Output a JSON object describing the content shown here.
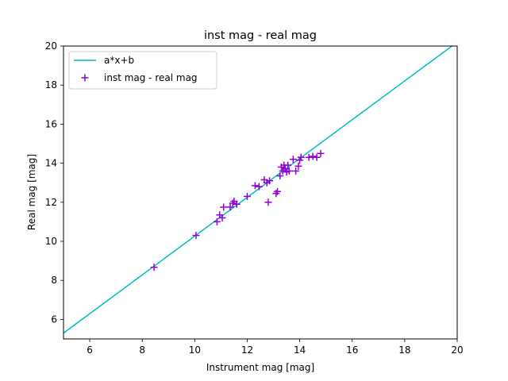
{
  "chart_data": {
    "type": "scatter",
    "title": "inst mag - real mag",
    "xlabel": "Instrument mag [mag]",
    "ylabel": "Real mag [mag]",
    "xlim": [
      5,
      20
    ],
    "ylim": [
      5,
      20
    ],
    "xticks": [
      6,
      8,
      10,
      12,
      14,
      16,
      18,
      20
    ],
    "yticks": [
      6,
      8,
      10,
      12,
      14,
      16,
      18,
      20
    ],
    "grid": false,
    "legend_position": "top-left",
    "fit_line": {
      "name": "a*x+b",
      "color": "#00bfbf",
      "points": [
        [
          5.0,
          5.3
        ],
        [
          19.8,
          20.0
        ]
      ]
    },
    "series": [
      {
        "name": "inst mag - real mag",
        "marker": "plus",
        "color": "#9400d3",
        "points": [
          [
            8.45,
            8.67
          ],
          [
            10.05,
            10.3
          ],
          [
            10.85,
            11.0
          ],
          [
            10.95,
            11.35
          ],
          [
            11.05,
            11.2
          ],
          [
            11.1,
            11.75
          ],
          [
            11.35,
            11.75
          ],
          [
            11.45,
            11.95
          ],
          [
            11.5,
            12.05
          ],
          [
            11.6,
            11.9
          ],
          [
            12.0,
            12.3
          ],
          [
            12.3,
            12.85
          ],
          [
            12.45,
            12.8
          ],
          [
            12.65,
            13.15
          ],
          [
            12.75,
            13.0
          ],
          [
            12.8,
            12.0
          ],
          [
            12.85,
            13.1
          ],
          [
            13.1,
            12.45
          ],
          [
            13.15,
            12.55
          ],
          [
            13.25,
            13.35
          ],
          [
            13.3,
            13.8
          ],
          [
            13.35,
            13.6
          ],
          [
            13.4,
            13.9
          ],
          [
            13.45,
            13.7
          ],
          [
            13.5,
            13.55
          ],
          [
            13.55,
            13.9
          ],
          [
            13.6,
            13.6
          ],
          [
            13.75,
            14.2
          ],
          [
            13.85,
            13.6
          ],
          [
            13.95,
            13.85
          ],
          [
            14.0,
            14.15
          ],
          [
            14.05,
            14.3
          ],
          [
            14.35,
            14.3
          ],
          [
            14.5,
            14.35
          ],
          [
            14.65,
            14.3
          ],
          [
            14.8,
            14.5
          ]
        ]
      }
    ]
  }
}
